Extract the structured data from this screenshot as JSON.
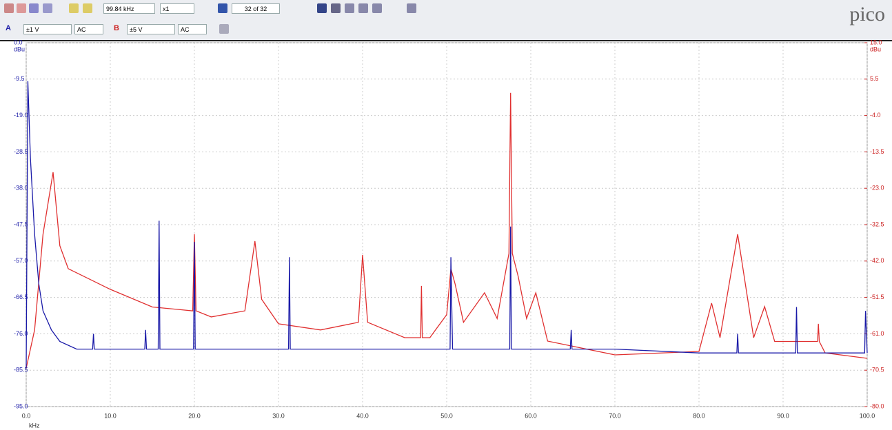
{
  "toolbar": {
    "timebase": "99.84 kHz",
    "zoom": "x1",
    "buffer": "32 of 32",
    "channel_a": {
      "name": "A",
      "range": "±1 V",
      "coupling": "AC"
    },
    "channel_b": {
      "name": "B",
      "range": "±5 V",
      "coupling": "AC"
    },
    "logo": "pico"
  },
  "chart_data": {
    "type": "line",
    "xlabel": "kHz",
    "ylabel": "dBu",
    "y2label": "dBu",
    "xlim": [
      0,
      100
    ],
    "xticks": [
      {
        "value": 0,
        "label": "0.0"
      },
      {
        "value": 10,
        "label": "10.0"
      },
      {
        "value": 20,
        "label": "20.0"
      },
      {
        "value": 30,
        "label": "30.0"
      },
      {
        "value": 40,
        "label": "40.0"
      },
      {
        "value": 50,
        "label": "50.0"
      },
      {
        "value": 60,
        "label": "60.0"
      },
      {
        "value": 70,
        "label": "70.0"
      },
      {
        "value": 80,
        "label": "80.0"
      },
      {
        "value": 90,
        "label": "90.0"
      },
      {
        "value": 100,
        "label": "100.0"
      }
    ],
    "ylim": [
      -95,
      0
    ],
    "yticks": [
      {
        "value": 0,
        "label": "0.0"
      },
      -9.5,
      {
        "value": -19,
        "label": "-19.0"
      },
      -28.5,
      {
        "value": -38,
        "label": "-38.0"
      },
      -47.5,
      {
        "value": -57,
        "label": "-57.0"
      },
      -66.5,
      {
        "value": -76,
        "label": "-76.0"
      },
      -85.5,
      {
        "value": -95,
        "label": "-95.0"
      }
    ],
    "y2lim": [
      -80,
      15
    ],
    "y2ticks": [
      {
        "value": 15,
        "label": "15.0"
      },
      5.5,
      {
        "value": -4,
        "label": "-4.0"
      },
      -13.5,
      {
        "value": -23,
        "label": "-23.0"
      },
      -32.5,
      {
        "value": -42,
        "label": "-42.0"
      },
      -51.5,
      {
        "value": -61,
        "label": "-61.0"
      },
      -70.5,
      {
        "value": -80,
        "label": "-80.0"
      }
    ],
    "grid": true,
    "series": [
      {
        "name": "A",
        "color": "#1a1aa8",
        "axis": "y",
        "x": [
          0,
          0.2,
          0.5,
          1,
          1.5,
          2,
          3,
          4,
          6,
          7.9,
          8,
          8.1,
          14.1,
          14.2,
          14.3,
          15.7,
          15.8,
          15.9,
          19.9,
          20,
          20.1,
          31.2,
          31.3,
          31.4,
          40,
          50.4,
          50.5,
          50.7,
          57.5,
          57.6,
          57.7,
          64.7,
          64.8,
          64.9,
          70,
          80,
          84.5,
          84.6,
          84.7,
          91.5,
          91.6,
          91.7,
          99.7,
          99.8,
          100
        ],
        "values": [
          -85,
          -10,
          -30,
          -50,
          -63,
          -70,
          -75,
          -78,
          -80,
          -80,
          -76,
          -80,
          -80,
          -75,
          -80,
          -80,
          -46.5,
          -80,
          -80,
          -52,
          -80,
          -80,
          -56,
          -80,
          -80,
          -80,
          -56,
          -80,
          -80,
          -48,
          -80,
          -80,
          -75,
          -80,
          -80,
          -81,
          -81,
          -76,
          -81,
          -81,
          -69,
          -81,
          -81,
          -70,
          -81
        ]
      },
      {
        "name": "B",
        "color": "#e03030",
        "axis": "y2",
        "x": [
          0,
          1,
          2,
          3.2,
          4,
          5,
          10,
          15,
          19.8,
          20,
          20.2,
          22,
          26,
          27.2,
          28,
          30,
          35,
          39.5,
          40,
          40.6,
          45,
          46.9,
          47,
          47.1,
          48,
          50,
          50.5,
          51,
          52,
          54.5,
          56,
          57.4,
          57.6,
          57.8,
          58.5,
          59.5,
          60.6,
          62,
          70,
          80,
          81.5,
          82.5,
          84.6,
          86.5,
          87.8,
          89,
          94.1,
          94.2,
          94.3,
          95,
          100
        ],
        "values": [
          -70,
          -60,
          -35,
          -18.8,
          -38,
          -44,
          -49.4,
          -54,
          -55,
          -35,
          -55,
          -56.6,
          -55,
          -36.8,
          -52,
          -58.4,
          -60,
          -58,
          -40.4,
          -58,
          -62,
          -62,
          -48.5,
          -62,
          -62,
          -56,
          -44,
          -48,
          -58,
          -50.3,
          -57,
          -40,
          1.9,
          -40,
          -46,
          -57,
          -50.3,
          -62.9,
          -66.5,
          -65.6,
          -53,
          -62,
          -35,
          -62,
          -53.9,
          -63,
          -63,
          -58.4,
          -63,
          -66,
          -67.4
        ]
      }
    ]
  }
}
